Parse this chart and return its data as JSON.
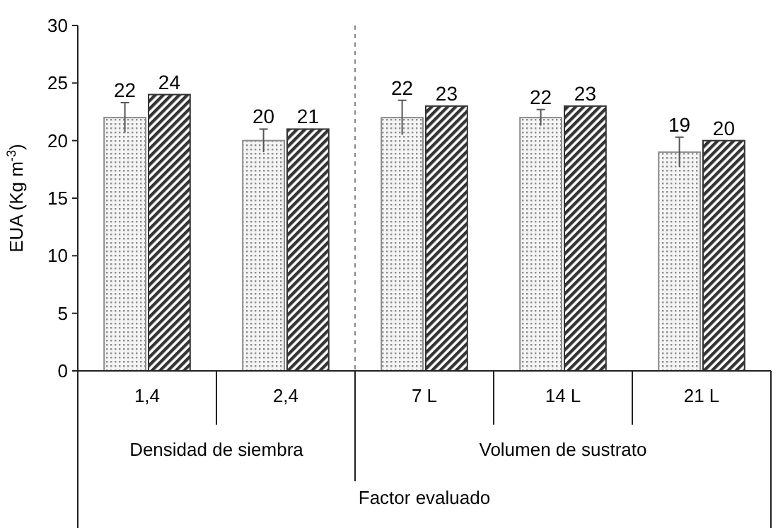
{
  "chart_data": {
    "type": "bar",
    "xlabel": "Factor evaluado",
    "ylabel": "EUA (Kg m$^{-3}$)",
    "categories": [
      "1,4",
      "2,4",
      "7 L",
      "14 L",
      "21 L"
    ],
    "series": [
      {
        "color": "#8c8c8c",
        "values": [
          22,
          20,
          22,
          22,
          19
        ],
        "errors": [
          1.3,
          1,
          1.5,
          0.7,
          1.3
        ]
      },
      {
        "color": "#333333",
        "values": [
          24,
          21,
          23,
          23,
          20
        ]
      }
    ],
    "annotations": [
      "Densidad de siembra",
      "Volumen de sustrato"
    ],
    "ylim": [
      0,
      30
    ],
    "yticks": [
      0,
      5,
      10,
      15,
      20,
      25,
      30
    ],
    "data_labels": true,
    "grid": false
  }
}
